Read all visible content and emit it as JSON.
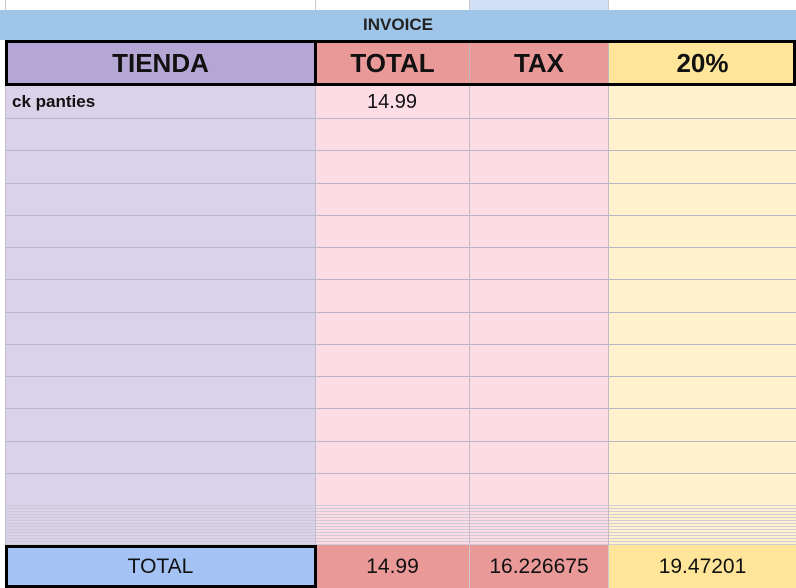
{
  "sheet": {
    "title": "INVOICE",
    "headers": [
      "TIENDA",
      "TOTAL",
      "TAX",
      "20%"
    ],
    "rows": [
      [
        "ck panties",
        "14.99"
      ]
    ],
    "footer": [
      "TOTAL",
      "14.99",
      "16.226675",
      "19.47201"
    ]
  }
}
